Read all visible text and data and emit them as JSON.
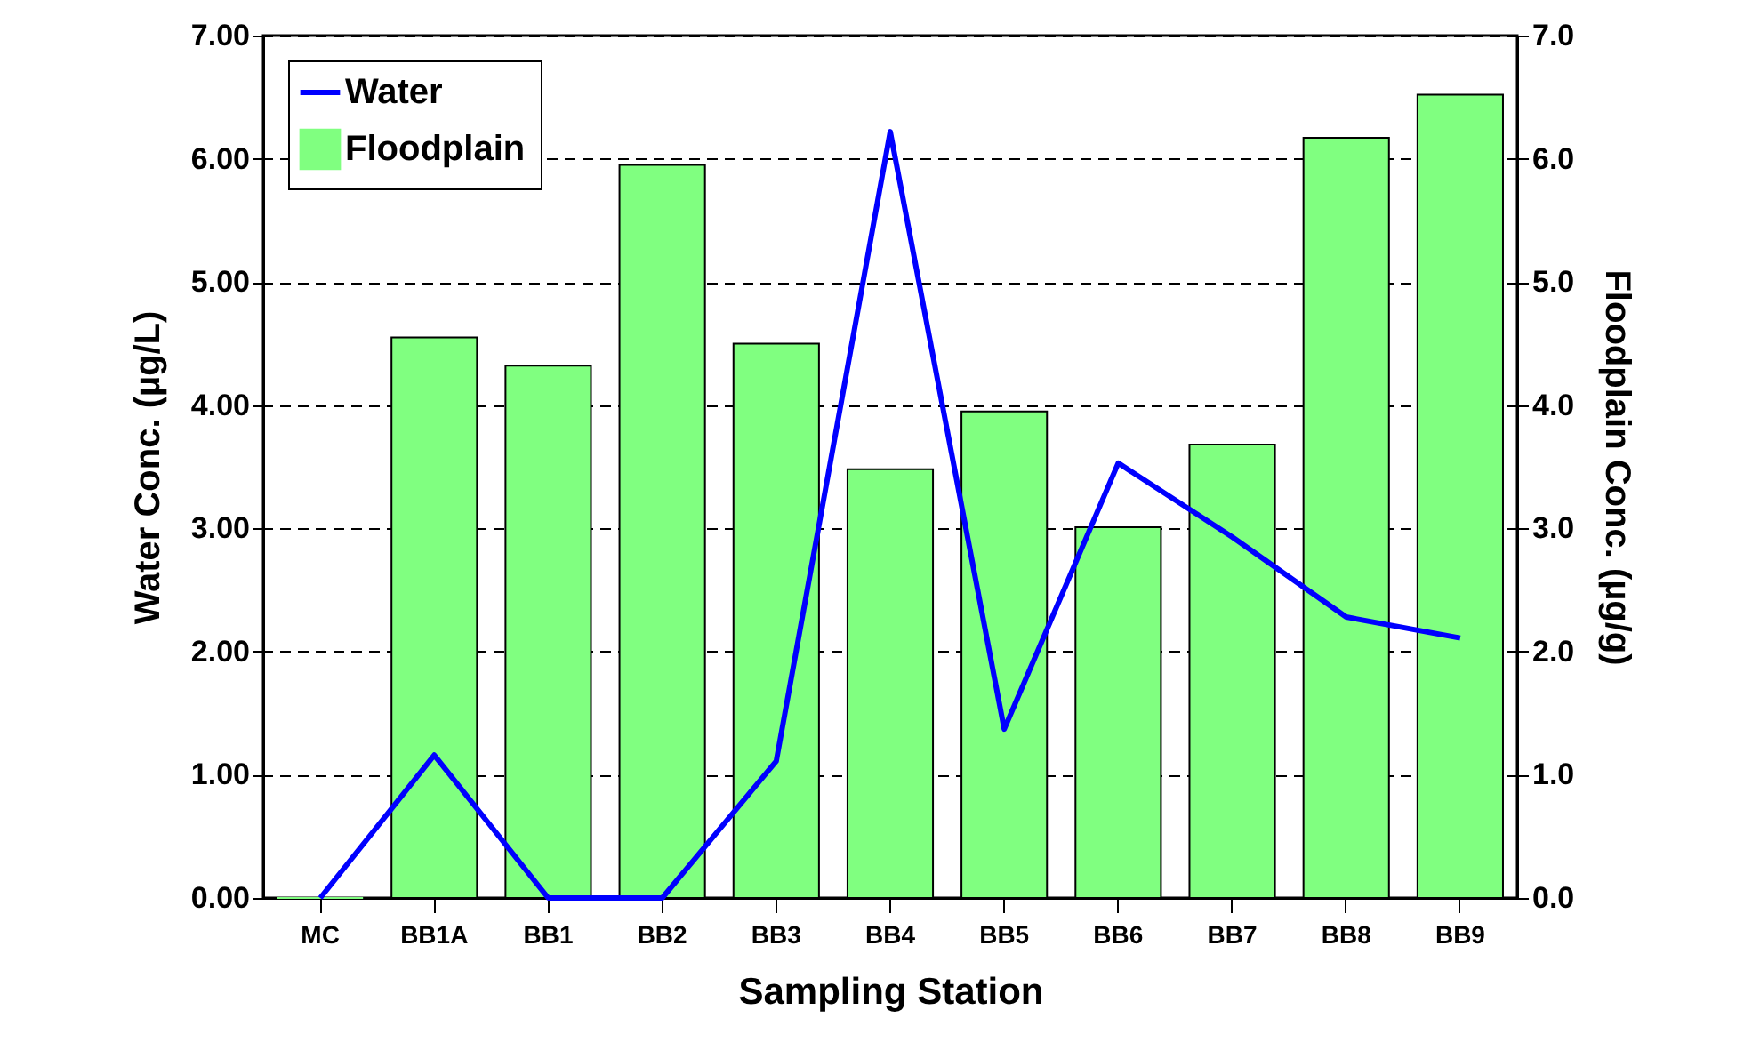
{
  "chart_data": {
    "type": "bar",
    "xlabel": "Sampling Station",
    "ylabel": "Water Conc. (µg/L)",
    "y2label": "Floodplain Conc. (µg/g)",
    "categories": [
      "MC",
      "BB1A",
      "BB1",
      "BB2",
      "BB3",
      "BB4",
      "BB5",
      "BB6",
      "BB7",
      "BB8",
      "BB9"
    ],
    "series": [
      {
        "name": "Water",
        "type": "line",
        "axis": "y",
        "color": "#0000ff",
        "values": [
          0,
          1.16,
          0,
          0,
          1.11,
          6.22,
          1.37,
          3.53,
          2.93,
          2.28,
          2.11
        ]
      },
      {
        "name": "Floodplain",
        "axis": "y2",
        "color": "#80ff80",
        "values": [
          0,
          4.55,
          4.32,
          5.95,
          4.5,
          3.48,
          3.95,
          3.01,
          3.68,
          6.17,
          6.52
        ]
      }
    ],
    "ylim": [
      0,
      7
    ],
    "yticks": [
      {
        "value": 0,
        "label": "0.00"
      },
      {
        "value": 1,
        "label": "1.00"
      },
      {
        "value": 2,
        "label": "2.00"
      },
      {
        "value": 3,
        "label": "3.00"
      },
      {
        "value": 4,
        "label": "4.00"
      },
      {
        "value": 5,
        "label": "5.00"
      },
      {
        "value": 6,
        "label": "6.00"
      },
      {
        "value": 7,
        "label": "7.00"
      }
    ],
    "y2lim": [
      0,
      7
    ],
    "y2ticks": [
      {
        "value": 0,
        "label": "0.0"
      },
      {
        "value": 1,
        "label": "1.0"
      },
      {
        "value": 2,
        "label": "2.0"
      },
      {
        "value": 3,
        "label": "3.0"
      },
      {
        "value": 4,
        "label": "4.0"
      },
      {
        "value": 5,
        "label": "5.0"
      },
      {
        "value": 6,
        "label": "6.0"
      },
      {
        "value": 7,
        "label": "7.0"
      }
    ],
    "grid": "y",
    "legend": "top left"
  }
}
